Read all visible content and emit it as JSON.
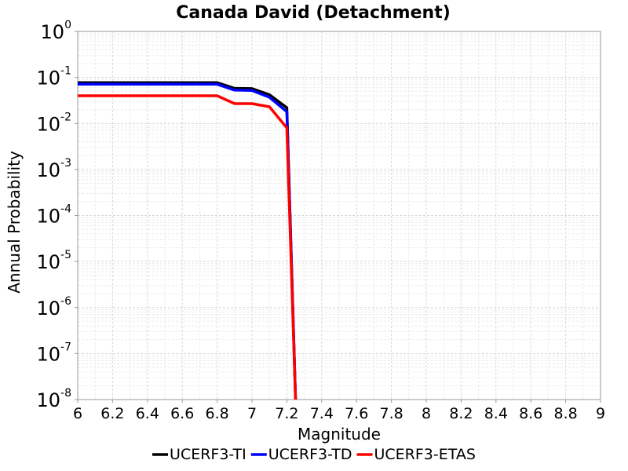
{
  "chart_data": {
    "type": "line",
    "title": "Canada David (Detachment)",
    "xlabel": "Magnitude",
    "ylabel": "Annual Probability",
    "xlim": [
      6,
      9
    ],
    "ylim": [
      1e-08,
      1
    ],
    "yscale": "log",
    "grid": true,
    "legend_position": "bottom",
    "x_ticks": [
      "6",
      "6.2",
      "6.4",
      "6.6",
      "6.8",
      "7",
      "7.2",
      "7.4",
      "7.6",
      "7.8",
      "8",
      "8.2",
      "8.4",
      "8.6",
      "8.8",
      "9"
    ],
    "y_tick_exponents": [
      "0",
      "-1",
      "-2",
      "-3",
      "-4",
      "-5",
      "-6",
      "-7",
      "-8"
    ],
    "y_tick_base": "10",
    "series": [
      {
        "name": "UCERF3-TI",
        "color": "#000000",
        "x": [
          6.0,
          6.1,
          6.2,
          6.3,
          6.4,
          6.5,
          6.6,
          6.7,
          6.8,
          6.9,
          7.0,
          7.1,
          7.2,
          7.25
        ],
        "y": [
          0.077,
          0.077,
          0.077,
          0.077,
          0.077,
          0.077,
          0.077,
          0.077,
          0.077,
          0.058,
          0.057,
          0.042,
          0.022,
          1e-08
        ]
      },
      {
        "name": "UCERF3-TD",
        "color": "#0000ff",
        "x": [
          6.0,
          6.1,
          6.2,
          6.3,
          6.4,
          6.5,
          6.6,
          6.7,
          6.8,
          6.9,
          7.0,
          7.1,
          7.2,
          7.25
        ],
        "y": [
          0.071,
          0.071,
          0.071,
          0.071,
          0.071,
          0.071,
          0.071,
          0.071,
          0.071,
          0.053,
          0.052,
          0.037,
          0.018,
          1e-08
        ]
      },
      {
        "name": "UCERF3-ETAS",
        "color": "#ff0000",
        "x": [
          6.0,
          6.1,
          6.2,
          6.3,
          6.4,
          6.5,
          6.6,
          6.7,
          6.8,
          6.9,
          7.0,
          7.1,
          7.2,
          7.25
        ],
        "y": [
          0.04,
          0.04,
          0.04,
          0.04,
          0.04,
          0.04,
          0.04,
          0.04,
          0.04,
          0.027,
          0.027,
          0.023,
          0.008,
          1e-08
        ]
      }
    ]
  }
}
